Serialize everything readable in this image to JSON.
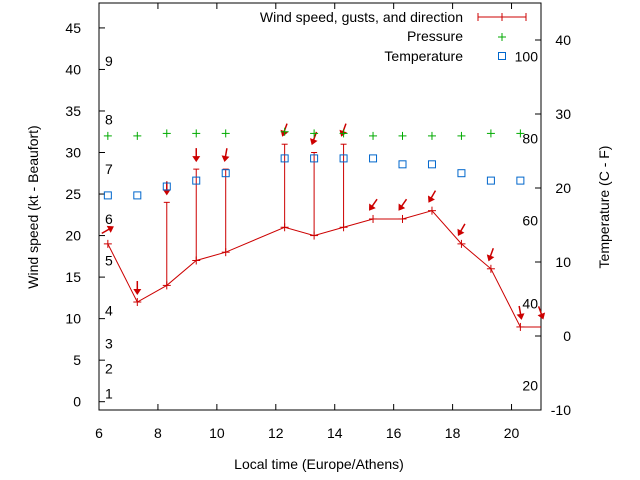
{
  "chart_data": {
    "type": "line",
    "title": "",
    "xlabel": "Local time (Europe/Athens)",
    "ylabel_left": "Wind speed (kt - Beaufort)",
    "ylabel_right": "Temperature (C - F)",
    "xlim": [
      6,
      21
    ],
    "ylim_left": [
      -1,
      48
    ],
    "ylim_right": [
      -10,
      45
    ],
    "x_ticks": [
      6,
      8,
      10,
      12,
      14,
      16,
      18,
      20
    ],
    "y_left_ticks": [
      0,
      5,
      10,
      15,
      20,
      25,
      30,
      35,
      40,
      45
    ],
    "y_right_ticks": [
      -10,
      0,
      10,
      20,
      30,
      40
    ],
    "beaufort_labels": [
      {
        "label": "1",
        "kt": 1
      },
      {
        "label": "2",
        "kt": 4
      },
      {
        "label": "3",
        "kt": 7
      },
      {
        "label": "4",
        "kt": 11
      },
      {
        "label": "5",
        "kt": 17
      },
      {
        "label": "6",
        "kt": 22
      },
      {
        "label": "7",
        "kt": 28
      },
      {
        "label": "8",
        "kt": 34
      },
      {
        "label": "9",
        "kt": 41
      }
    ],
    "fahrenheit_labels": [
      {
        "label": "20",
        "c": -6.7
      },
      {
        "label": "40",
        "c": 4.4
      },
      {
        "label": "60",
        "c": 15.6
      },
      {
        "label": "80",
        "c": 26.7
      },
      {
        "label": "100",
        "c": 37.8
      }
    ],
    "series": [
      {
        "name": "Wind speed, gusts, and direction",
        "color": "#cc0000",
        "points": [
          {
            "x": 6.3,
            "speed": 19,
            "gust": null,
            "dir": 240
          },
          {
            "x": 7.3,
            "speed": 12,
            "gust": null,
            "dir": 0
          },
          {
            "x": 8.3,
            "speed": 14,
            "gust": 24,
            "dir": 0
          },
          {
            "x": 9.3,
            "speed": 17,
            "gust": 28,
            "dir": 0
          },
          {
            "x": 10.3,
            "speed": 18,
            "gust": 28,
            "dir": 10
          },
          {
            "x": 12.3,
            "speed": 21,
            "gust": 31,
            "dir": 20
          },
          {
            "x": 13.3,
            "speed": 20,
            "gust": 30,
            "dir": 20
          },
          {
            "x": 14.3,
            "speed": 21,
            "gust": 31,
            "dir": 20
          },
          {
            "x": 15.3,
            "speed": 22,
            "gust": null,
            "dir": 35
          },
          {
            "x": 16.3,
            "speed": 22,
            "gust": null,
            "dir": 35
          },
          {
            "x": 17.3,
            "speed": 23,
            "gust": null,
            "dir": 30
          },
          {
            "x": 18.3,
            "speed": 19,
            "gust": null,
            "dir": 30
          },
          {
            "x": 19.3,
            "speed": 16,
            "gust": null,
            "dir": 20
          },
          {
            "x": 20.3,
            "speed": 9,
            "gust": null,
            "dir": 350
          },
          {
            "x": 21.0,
            "speed": 9,
            "gust": null,
            "dir": 340
          }
        ]
      },
      {
        "name": "Pressure",
        "color": "#00aa00",
        "x": [
          6.3,
          7.3,
          8.3,
          9.3,
          10.3,
          12.3,
          13.3,
          14.3,
          15.3,
          16.3,
          17.3,
          18.3,
          19.3,
          20.3
        ],
        "y_wind_axis": [
          32,
          32,
          32.3,
          32.3,
          32.3,
          32.5,
          32.3,
          32.3,
          32,
          32,
          32,
          32,
          32.3,
          32.3
        ]
      },
      {
        "name": "Temperature",
        "color": "#0066cc",
        "x": [
          6.3,
          7.3,
          8.3,
          9.3,
          10.3,
          12.3,
          13.3,
          14.3,
          15.3,
          16.3,
          17.3,
          18.3,
          19.3,
          20.3
        ],
        "y_celsius": [
          19,
          19,
          20.2,
          21,
          22,
          24,
          24,
          24,
          24,
          23.2,
          23.2,
          22,
          21,
          21
        ]
      }
    ]
  }
}
